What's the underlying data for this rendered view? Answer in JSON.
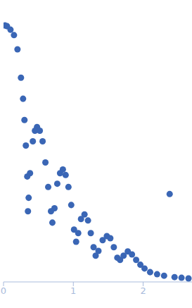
{
  "chart_data": {
    "type": "scatter",
    "log": "y",
    "grid": false,
    "tick_labels": "x",
    "marker": "circle",
    "color": "#3a66b5",
    "xlim": [
      0,
      2.7
    ],
    "xticks": [
      0,
      1,
      2
    ],
    "ylim": [
      0.002,
      10
    ],
    "yticks": [
      0.01,
      0.1,
      1
    ],
    "x": [
      0.02,
      0.05,
      0.1,
      0.15,
      0.2,
      0.25,
      0.28,
      0.3,
      0.32,
      0.34,
      0.35,
      0.36,
      0.38,
      0.42,
      0.45,
      0.48,
      0.52,
      0.56,
      0.6,
      0.64,
      0.68,
      0.7,
      0.73,
      0.77,
      0.81,
      0.85,
      0.89,
      0.93,
      0.97,
      1.01,
      1.04,
      1.07,
      1.11,
      1.16,
      1.21,
      1.25,
      1.29,
      1.32,
      1.36,
      1.42,
      1.48,
      1.53,
      1.58,
      1.63,
      1.67,
      1.72,
      1.78,
      1.84,
      1.9,
      1.96,
      2.02,
      2.1,
      2.2,
      2.3,
      2.38,
      2.45,
      2.55,
      2.65
    ],
    "values": [
      8.5,
      8.3,
      7.4,
      6.2,
      3.9,
      1.55,
      0.78,
      0.39,
      0.17,
      0.062,
      0.02,
      0.031,
      0.069,
      0.195,
      0.275,
      0.31,
      0.275,
      0.195,
      0.098,
      0.044,
      0.02,
      0.0138,
      0.022,
      0.049,
      0.069,
      0.078,
      0.065,
      0.044,
      0.0245,
      0.011,
      0.0074,
      0.0098,
      0.0155,
      0.018,
      0.0148,
      0.0098,
      0.0062,
      0.0047,
      0.0055,
      0.0078,
      0.0089,
      0.0083,
      0.0062,
      0.0044,
      0.0041,
      0.0047,
      0.0054,
      0.0049,
      0.0041,
      0.0035,
      0.0031,
      0.00275,
      0.00257,
      0.00245,
      0.035,
      0.00234,
      0.00229,
      0.00224
    ]
  }
}
